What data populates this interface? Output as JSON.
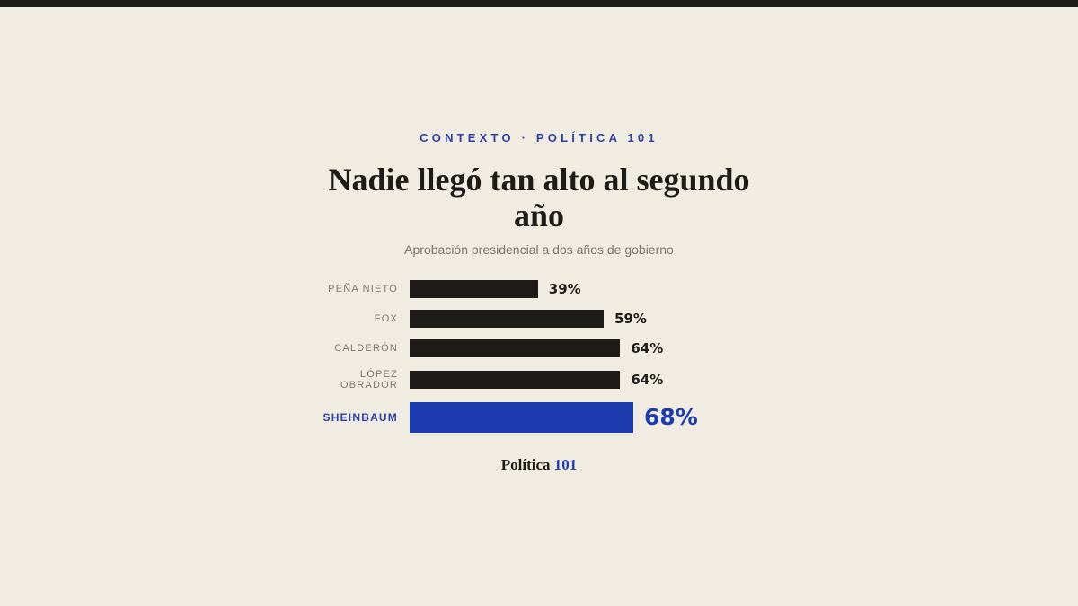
{
  "eyebrow": "CONTEXTO · POLÍTICA 101",
  "footer": {
    "brand": "Política",
    "brand_accent": "101"
  },
  "colors": {
    "background": "#f0ece2",
    "bar": "#1e1c18",
    "highlight": "#1d3caf",
    "muted": "#7a766d"
  },
  "chart_data": {
    "type": "bar",
    "orientation": "horizontal",
    "title": "Nadie llegó tan alto al segundo año",
    "subtitle": "Aprobación presidencial a dos años de gobierno",
    "xlabel": "",
    "ylabel": "",
    "xlim": [
      0,
      100
    ],
    "grid": false,
    "legend": "none",
    "unit": "%",
    "categories": [
      "PEÑA NIETO",
      "FOX",
      "CALDERÓN",
      "LÓPEZ OBRADOR",
      "SHEINBAUM"
    ],
    "values": [
      39,
      59,
      64,
      64,
      68
    ],
    "value_labels": [
      "39%",
      "59%",
      "64%",
      "64%",
      "68%"
    ],
    "highlight": "SHEINBAUM"
  }
}
